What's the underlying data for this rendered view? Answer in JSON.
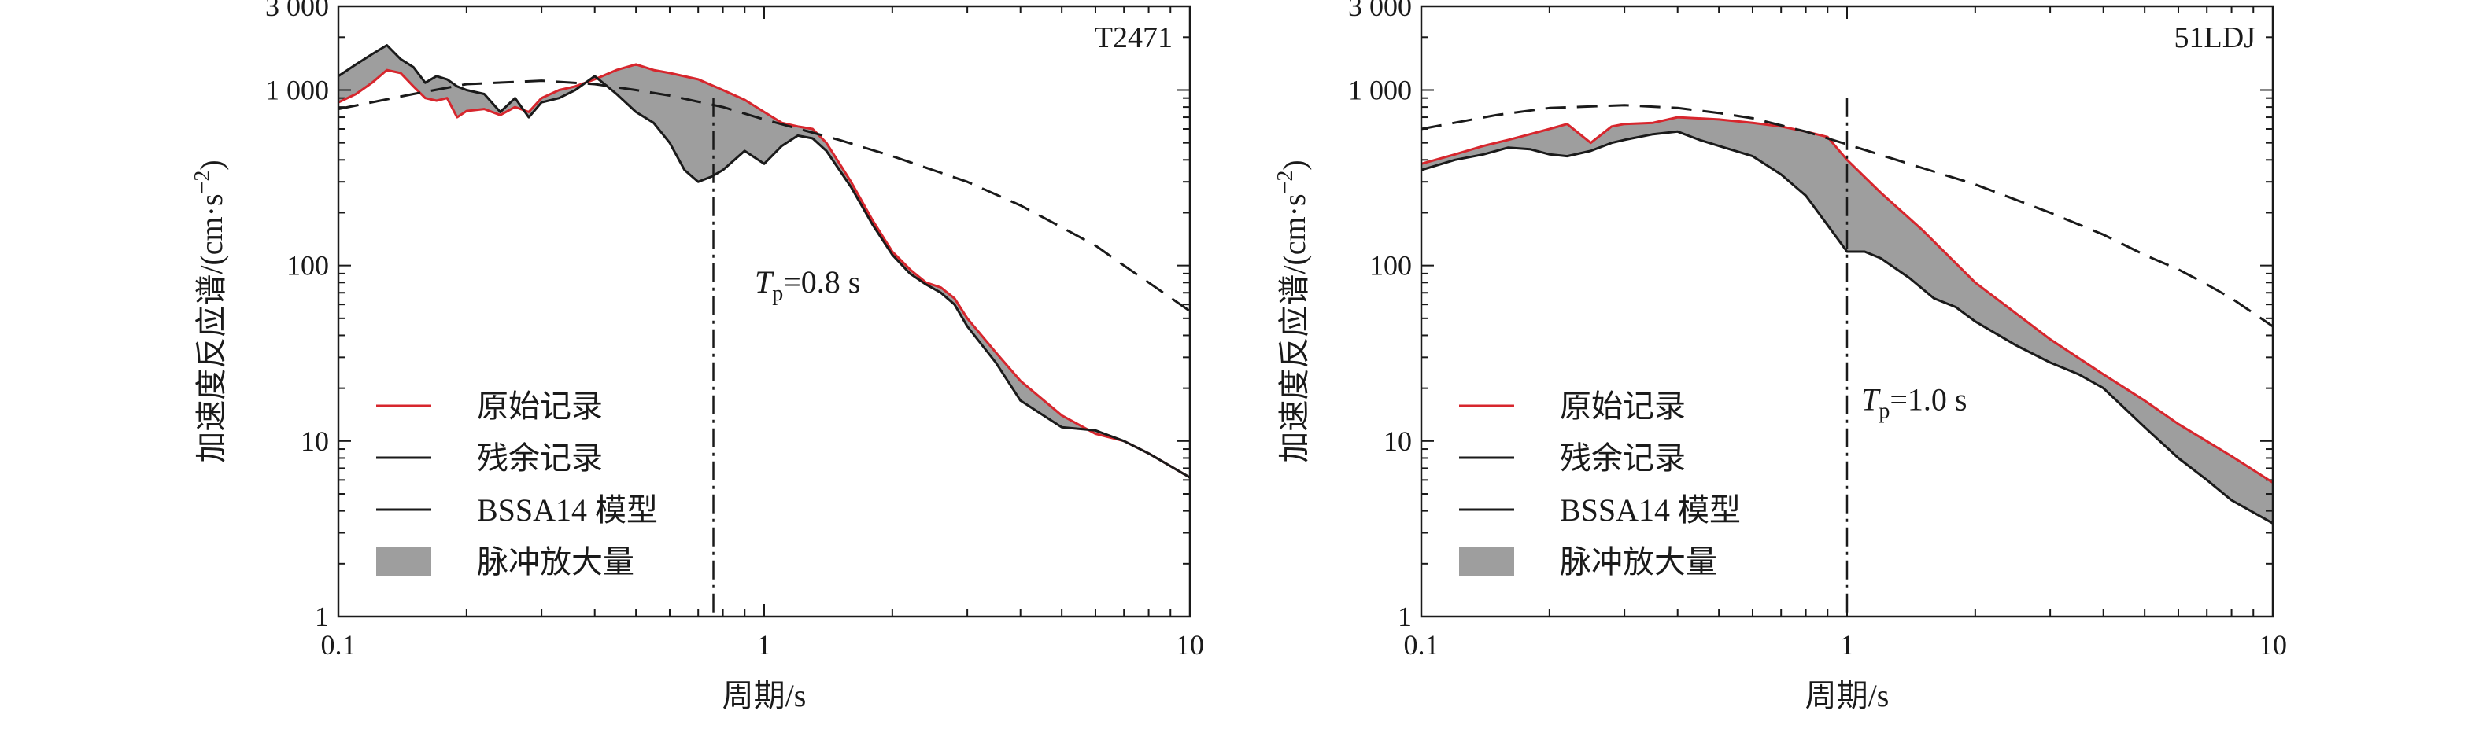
{
  "chart_data": [
    {
      "type": "line",
      "station": "T2471",
      "xscale": "log",
      "yscale": "log",
      "xlim": [
        0.1,
        10
      ],
      "ylim": [
        1,
        3000
      ],
      "xticks": [
        {
          "v": 0.1,
          "label": "0.1"
        },
        {
          "v": 1,
          "label": "1"
        },
        {
          "v": 10,
          "label": "10"
        }
      ],
      "yticks": [
        {
          "v": 1,
          "label": "1"
        },
        {
          "v": 10,
          "label": "10"
        },
        {
          "v": 100,
          "label": "100"
        },
        {
          "v": 1000,
          "label": "1 000"
        },
        {
          "v": 3000,
          "label": "3 000"
        }
      ],
      "xlabel": "周期/s",
      "ylabel": "加速度反应谱/(cm·s",
      "ylabel_sup": "−2",
      "ylabel_close": ")",
      "tp": {
        "value": 0.76,
        "label_t": "T",
        "label_sub": "p",
        "label_rest": "=0.8 s",
        "label_x": 0.95,
        "label_y": 70
      },
      "legend": [
        {
          "label": "原始记录",
          "kind": "line",
          "color": "#d7262d"
        },
        {
          "label": "残余记录",
          "kind": "line",
          "color": "#1a1a1a"
        },
        {
          "label": "BSSA14  模型",
          "kind": "line",
          "color": "#1a1a1a"
        },
        {
          "label": "脉冲放大量",
          "kind": "patch",
          "color": "#9e9e9e"
        }
      ],
      "legend_position": "bottom-left",
      "series": [
        {
          "name": "原始记录",
          "color": "#d7262d",
          "style": "solid",
          "x": [
            0.1,
            0.11,
            0.12,
            0.13,
            0.14,
            0.15,
            0.16,
            0.17,
            0.18,
            0.19,
            0.2,
            0.22,
            0.24,
            0.26,
            0.28,
            0.3,
            0.33,
            0.36,
            0.4,
            0.45,
            0.5,
            0.55,
            0.6,
            0.7,
            0.8,
            0.9,
            1.0,
            1.1,
            1.2,
            1.3,
            1.4,
            1.6,
            1.8,
            2.0,
            2.2,
            2.4,
            2.6,
            2.8,
            3.0,
            3.5,
            4.0,
            5.0,
            6.0,
            7.0,
            8.0,
            10.0
          ],
          "y": [
            850,
            950,
            1100,
            1300,
            1250,
            1050,
            900,
            870,
            900,
            700,
            760,
            780,
            720,
            800,
            750,
            900,
            1000,
            1050,
            1150,
            1300,
            1400,
            1300,
            1250,
            1150,
            1000,
            880,
            750,
            650,
            620,
            600,
            500,
            300,
            180,
            120,
            95,
            80,
            75,
            65,
            50,
            32,
            22,
            14,
            11,
            10,
            8.5,
            6.2
          ]
        },
        {
          "name": "残余记录",
          "color": "#1a1a1a",
          "style": "solid",
          "x": [
            0.1,
            0.11,
            0.12,
            0.13,
            0.14,
            0.15,
            0.16,
            0.17,
            0.18,
            0.19,
            0.2,
            0.22,
            0.24,
            0.26,
            0.28,
            0.3,
            0.33,
            0.36,
            0.4,
            0.45,
            0.5,
            0.55,
            0.6,
            0.65,
            0.7,
            0.75,
            0.8,
            0.9,
            1.0,
            1.1,
            1.2,
            1.3,
            1.4,
            1.6,
            1.8,
            2.0,
            2.2,
            2.4,
            2.6,
            2.8,
            3.0,
            3.5,
            4.0,
            5.0,
            6.0,
            7.0,
            8.0,
            10.0
          ],
          "y": [
            1200,
            1400,
            1600,
            1800,
            1500,
            1350,
            1100,
            1200,
            1150,
            1050,
            1000,
            950,
            750,
            900,
            700,
            850,
            900,
            1000,
            1200,
            950,
            750,
            650,
            500,
            350,
            300,
            320,
            350,
            450,
            380,
            480,
            550,
            530,
            450,
            280,
            170,
            115,
            90,
            78,
            70,
            60,
            45,
            28,
            17,
            12,
            11.5,
            10,
            8.5,
            6.2
          ]
        },
        {
          "name": "BSSA14  模型",
          "color": "#1a1a1a",
          "style": "dashed",
          "x": [
            0.1,
            0.15,
            0.2,
            0.3,
            0.4,
            0.5,
            0.6,
            0.8,
            1.0,
            1.5,
            2.0,
            3.0,
            4.0,
            5.0,
            6.0,
            7.0,
            8.0,
            10.0
          ],
          "y": [
            780,
            950,
            1080,
            1130,
            1080,
            1000,
            930,
            800,
            680,
            520,
            420,
            300,
            220,
            165,
            130,
            100,
            80,
            55
          ]
        }
      ]
    },
    {
      "type": "line",
      "station": "51LDJ",
      "xscale": "log",
      "yscale": "log",
      "xlim": [
        0.1,
        10
      ],
      "ylim": [
        1,
        3000
      ],
      "xticks": [
        {
          "v": 0.1,
          "label": "0.1"
        },
        {
          "v": 1,
          "label": "1"
        },
        {
          "v": 10,
          "label": "10"
        }
      ],
      "yticks": [
        {
          "v": 1,
          "label": "1"
        },
        {
          "v": 10,
          "label": "10"
        },
        {
          "v": 100,
          "label": "100"
        },
        {
          "v": 1000,
          "label": "1 000"
        },
        {
          "v": 3000,
          "label": "3 000"
        }
      ],
      "xlabel": "周期/s",
      "ylabel": "加速度反应谱/(cm·s",
      "ylabel_sup": "−2",
      "ylabel_close": ")",
      "tp": {
        "value": 1.0,
        "label_t": "T",
        "label_sub": "p",
        "label_rest": "=1.0 s",
        "label_x": 1.08,
        "label_y": 15
      },
      "legend": [
        {
          "label": "原始记录",
          "kind": "line",
          "color": "#d7262d"
        },
        {
          "label": "残余记录",
          "kind": "line",
          "color": "#1a1a1a"
        },
        {
          "label": "BSSA14  模型",
          "kind": "line",
          "color": "#1a1a1a"
        },
        {
          "label": "脉冲放大量",
          "kind": "patch",
          "color": "#9e9e9e"
        }
      ],
      "legend_position": "bottom-left",
      "series": [
        {
          "name": "原始记录",
          "color": "#d7262d",
          "style": "solid",
          "x": [
            0.1,
            0.12,
            0.14,
            0.16,
            0.18,
            0.2,
            0.22,
            0.25,
            0.28,
            0.3,
            0.35,
            0.4,
            0.5,
            0.6,
            0.7,
            0.8,
            0.9,
            1.0,
            1.2,
            1.5,
            2.0,
            3.0,
            4.0,
            5.0,
            6.0,
            8.0,
            10.0
          ],
          "y": [
            380,
            430,
            480,
            520,
            560,
            600,
            640,
            500,
            620,
            640,
            650,
            700,
            680,
            650,
            620,
            580,
            540,
            400,
            260,
            160,
            80,
            38,
            24,
            17,
            12.5,
            8.2,
            5.8
          ]
        },
        {
          "name": "残余记录",
          "color": "#1a1a1a",
          "style": "solid",
          "x": [
            0.1,
            0.12,
            0.14,
            0.16,
            0.18,
            0.2,
            0.22,
            0.25,
            0.28,
            0.3,
            0.35,
            0.4,
            0.45,
            0.5,
            0.6,
            0.7,
            0.8,
            0.9,
            1.0,
            1.1,
            1.2,
            1.4,
            1.6,
            1.8,
            2.0,
            2.5,
            3.0,
            3.5,
            4.0,
            5.0,
            6.0,
            7.0,
            8.0,
            10.0
          ],
          "y": [
            350,
            400,
            430,
            470,
            460,
            430,
            420,
            450,
            500,
            520,
            560,
            580,
            520,
            480,
            420,
            330,
            250,
            170,
            120,
            120,
            110,
            85,
            65,
            58,
            48,
            35,
            28,
            24,
            20,
            12,
            8,
            6,
            4.6,
            3.4
          ]
        },
        {
          "name": "BSSA14  模型",
          "color": "#1a1a1a",
          "style": "dashed",
          "x": [
            0.1,
            0.15,
            0.2,
            0.3,
            0.4,
            0.5,
            0.6,
            0.8,
            1.0,
            1.5,
            2.0,
            3.0,
            4.0,
            5.0,
            6.0,
            7.0,
            8.0,
            10.0
          ],
          "y": [
            600,
            720,
            790,
            820,
            790,
            740,
            690,
            580,
            490,
            360,
            290,
            200,
            150,
            115,
            95,
            78,
            65,
            45
          ]
        }
      ]
    }
  ]
}
